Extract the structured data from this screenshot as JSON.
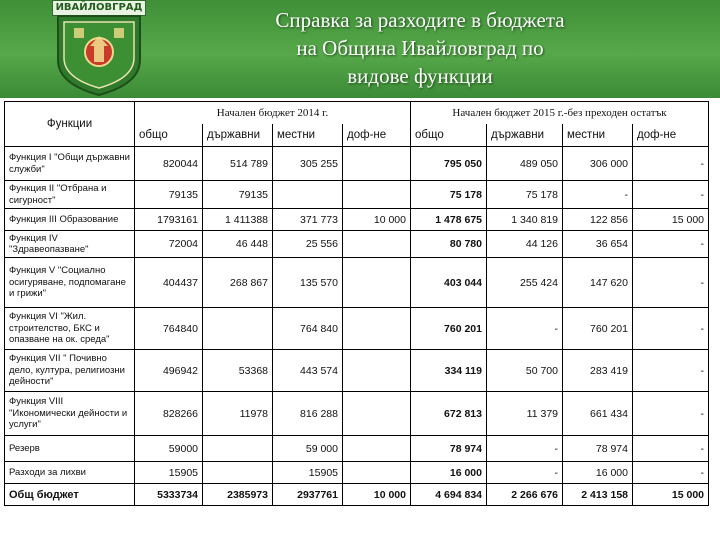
{
  "logo": {
    "text": "ИВАЙЛОВГРАД"
  },
  "title": {
    "line1": "Справка за разходите в бюджета",
    "line2": "на Община Ивайловград по",
    "line3": "видове функции"
  },
  "table": {
    "func_header": "Функции",
    "group_2014": "Начален бюджет 2014 г.",
    "group_2015": "Начален бюджет 2015 г.-без преходен остатък",
    "cols_2014": [
      "общо",
      "държавни",
      "местни",
      "доф-не"
    ],
    "cols_2015": [
      "общо",
      "държавни",
      "местни",
      "доф-не"
    ],
    "rows": [
      {
        "name": "Функция I \"Общи държавни служби\"",
        "v2014": [
          "820044",
          "514 789",
          "305 255",
          ""
        ],
        "v2015": [
          "795 050",
          "489 050",
          "306 000",
          "-"
        ]
      },
      {
        "name": "Функция II \"Отбрана и сигурност\"",
        "v2014": [
          "79135",
          "79135",
          "",
          ""
        ],
        "v2015": [
          "75 178",
          "75 178",
          "-",
          "-"
        ]
      },
      {
        "name": "Функция III Образование",
        "v2014": [
          "1793161",
          "1 411388",
          "371 773",
          "10 000"
        ],
        "v2015": [
          "1 478 675",
          "1 340 819",
          "122 856",
          "15 000"
        ]
      },
      {
        "name": "Функция IV \"Здравеопазване\"",
        "v2014": [
          "72004",
          "46 448",
          "25 556",
          ""
        ],
        "v2015": [
          "80 780",
          "44 126",
          "36 654",
          "-"
        ]
      },
      {
        "name": "Функция V \"Социално осигуряване, подпомагане и грижи\"",
        "v2014": [
          "404437",
          "268 867",
          "135 570",
          ""
        ],
        "v2015": [
          "403 044",
          "255 424",
          "147 620",
          "-"
        ]
      },
      {
        "name": "Функция VI \"Жил. строителство, БКС и опазване на ок. среда\"",
        "v2014": [
          "764840",
          "",
          "764 840",
          ""
        ],
        "v2015": [
          "760 201",
          "-",
          "760 201",
          "-"
        ]
      },
      {
        "name": "Функция VII \" Почивно дело, култура, религиозни дейности\"",
        "v2014": [
          "496942",
          "53368",
          "443 574",
          ""
        ],
        "v2015": [
          "334 119",
          "50 700",
          "283 419",
          "-"
        ]
      },
      {
        "name": "Функция VIII \"Икономически дейности и услуги\"",
        "v2014": [
          "828266",
          "11978",
          "816 288",
          ""
        ],
        "v2015": [
          "672 813",
          "11 379",
          "661 434",
          "-"
        ]
      },
      {
        "name": "Резерв",
        "v2014": [
          "59000",
          "",
          "59 000",
          ""
        ],
        "v2015": [
          "78 974",
          "-",
          "78 974",
          "-"
        ]
      },
      {
        "name": "Разходи за лихви",
        "v2014": [
          "15905",
          "",
          "15905",
          ""
        ],
        "v2015": [
          "16 000",
          "-",
          "16 000",
          "-"
        ]
      }
    ],
    "total": {
      "name": "Общ бюджет",
      "v2014": [
        "5333734",
        "2385973",
        "2937761",
        "10 000"
      ],
      "v2015": [
        "4 694 834",
        "2 266 676",
        "2 413 158",
        "15 000"
      ]
    }
  },
  "colors": {
    "header_green": "#4f9e44",
    "title_text": "#ffffff"
  }
}
